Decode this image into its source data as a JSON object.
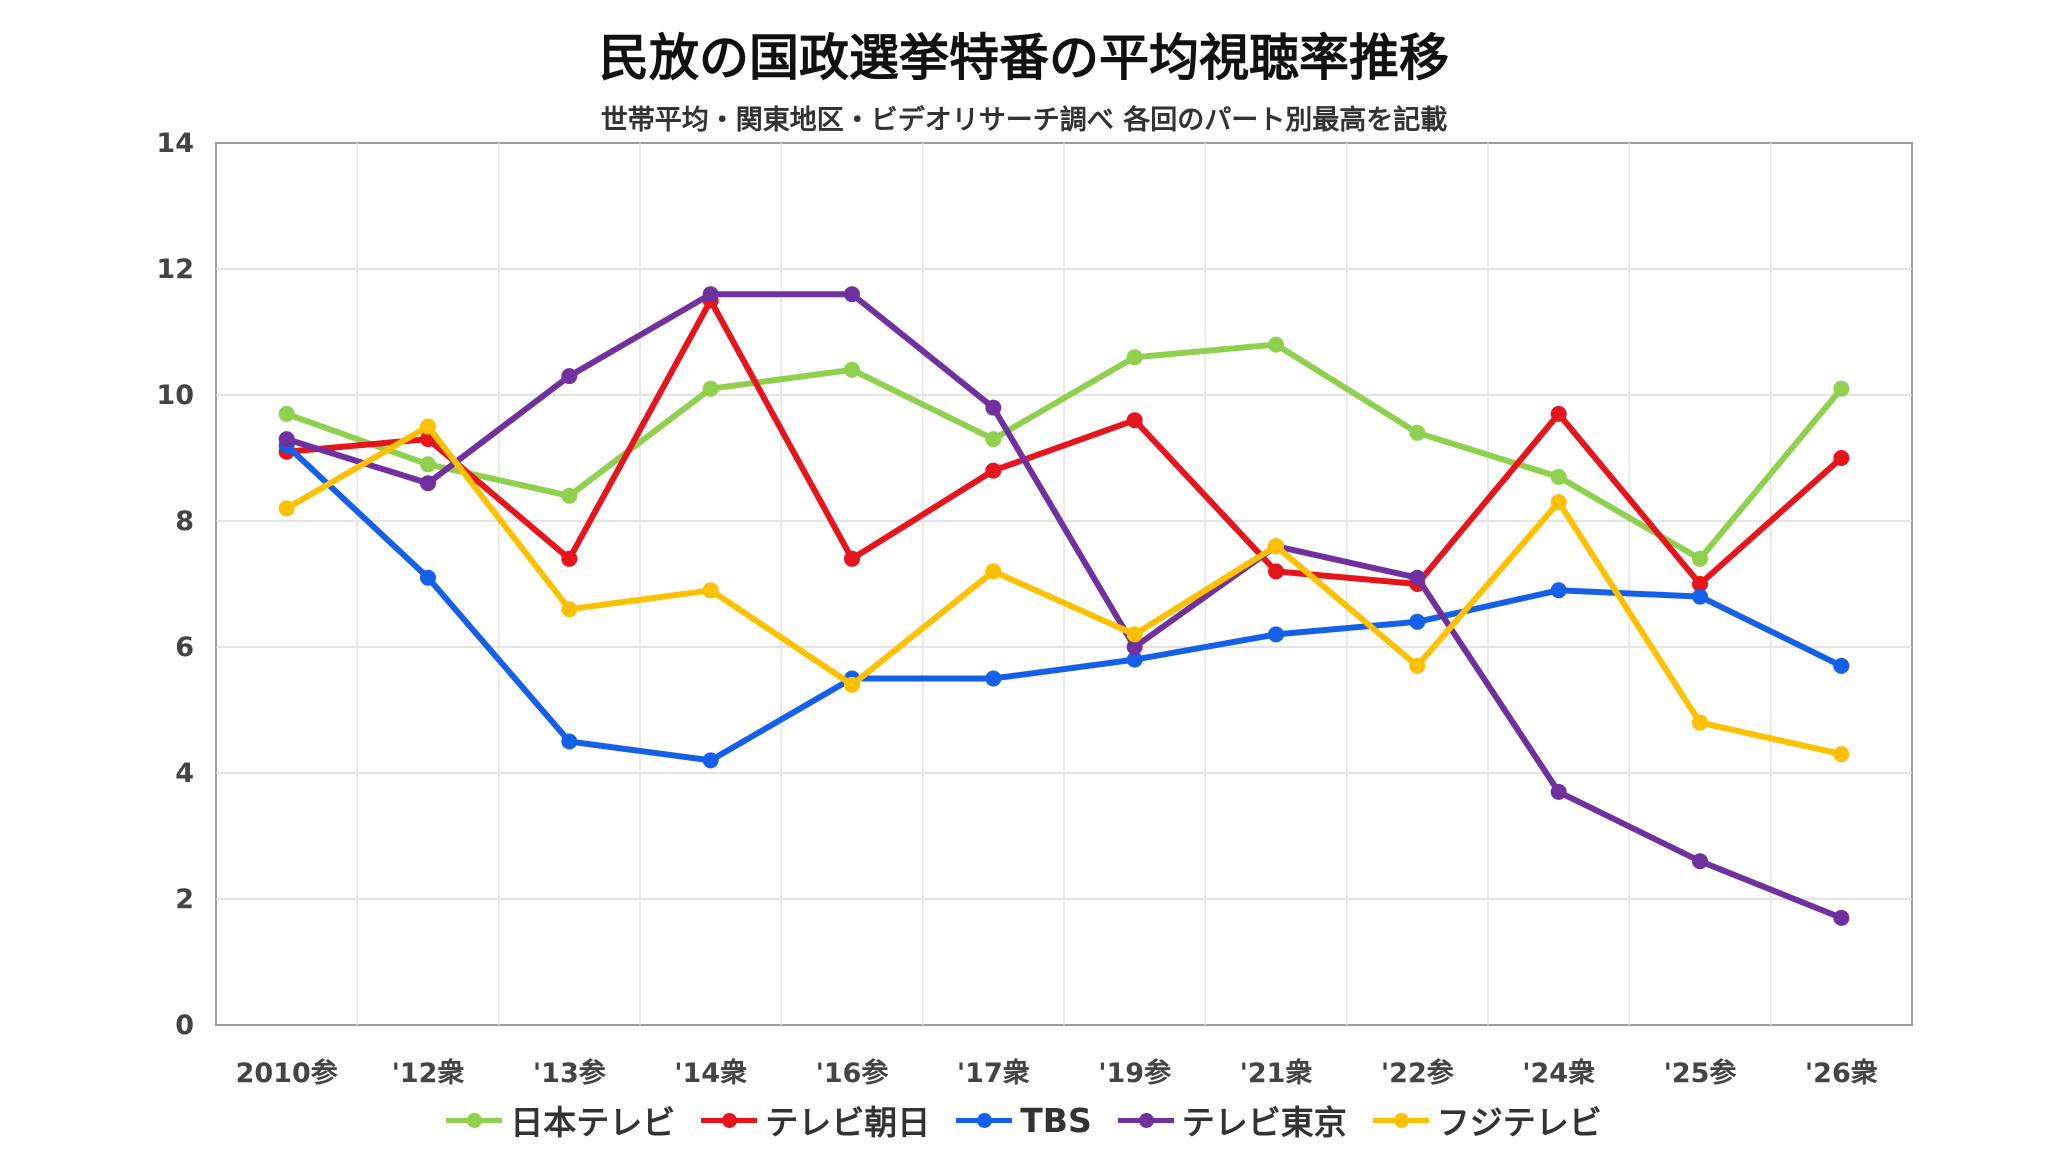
{
  "chart_data": {
    "type": "line",
    "title": "民放の国政選挙特番の平均視聴率推移",
    "subtitle": "世帯平均・関東地区・ビデオリサーチ調べ 各回のパート別最高を記載",
    "categories": [
      "2010参",
      "'12衆",
      "'13参",
      "'14衆",
      "'16参",
      "'17衆",
      "'19参",
      "'21衆",
      "'22参",
      "'24衆",
      "'25参",
      "'26衆"
    ],
    "yticks": [
      "0",
      "2",
      "4",
      "6",
      "8",
      "10",
      "12",
      "14"
    ],
    "ylim": [
      0,
      14
    ],
    "grid": true,
    "legend_position": "bottom",
    "series": [
      {
        "name": "日本テレビ",
        "color": "#8fd14f",
        "values": [
          9.7,
          8.9,
          8.4,
          10.1,
          10.4,
          9.3,
          10.6,
          10.8,
          9.4,
          8.7,
          7.4,
          10.1
        ]
      },
      {
        "name": "テレビ朝日",
        "color": "#e8141b",
        "values": [
          9.1,
          9.3,
          7.4,
          11.5,
          7.4,
          8.8,
          9.6,
          7.2,
          7.0,
          9.7,
          7.0,
          9.0
        ]
      },
      {
        "name": "TBS",
        "color": "#1560e8",
        "values": [
          9.2,
          7.1,
          4.5,
          4.2,
          5.5,
          5.5,
          5.8,
          6.2,
          6.4,
          6.9,
          6.8,
          5.7
        ]
      },
      {
        "name": "テレビ東京",
        "color": "#7030a0",
        "values": [
          9.3,
          8.6,
          10.3,
          11.6,
          11.6,
          9.8,
          6.0,
          7.6,
          7.1,
          3.7,
          2.6,
          1.7
        ]
      },
      {
        "name": "フジテレビ",
        "color": "#ffc000",
        "values": [
          8.2,
          9.5,
          6.6,
          6.9,
          5.4,
          7.2,
          6.2,
          7.6,
          5.7,
          8.3,
          4.8,
          4.3
        ]
      }
    ]
  }
}
